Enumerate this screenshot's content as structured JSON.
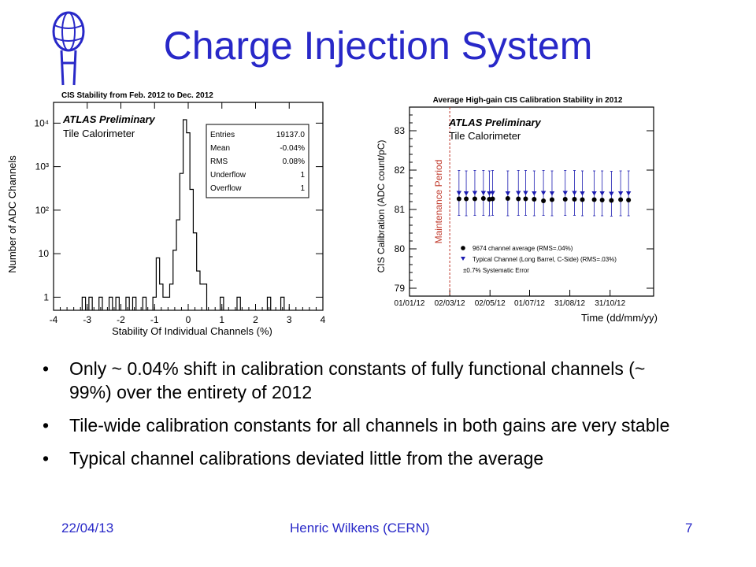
{
  "slide": {
    "title": "Charge Injection System",
    "bullets": [
      "Only ~ 0.04% shift in calibration constants of fully functional channels (~ 99%) over the entirety of 2012",
      "Tile-wide calibration constants for all channels in both gains are very stable",
      "Typical channel calibrations deviated little from the average"
    ],
    "bullet_symbol": "•",
    "footer": {
      "date": "22/04/13",
      "author": "Henric Wilkens (CERN)",
      "page": "7"
    },
    "colors": {
      "title": "#2828c8",
      "footer": "#2828c8",
      "marker_average": "#000000",
      "marker_typical": "#1a1ab0",
      "maintenance_line": "#c0392b"
    }
  },
  "chart_data": [
    {
      "type": "histogram",
      "title": "CIS Stability from Feb. 2012 to Dec. 2012",
      "xlabel": "Stability Of Individual Channels (%)",
      "ylabel": "Number of ADC Channels",
      "xlim": [
        -4,
        4
      ],
      "ylim": [
        0.5,
        30000
      ],
      "yscale": "log",
      "xticks": [
        -4,
        -3,
        -2,
        -1,
        0,
        1,
        2,
        3,
        4
      ],
      "yticks": [
        {
          "value": 1,
          "label": "1"
        },
        {
          "value": 10,
          "label": "10"
        },
        {
          "value": 100,
          "label": "10²"
        },
        {
          "value": 1000,
          "label": "10³"
        },
        {
          "value": 10000,
          "label": "10⁴"
        }
      ],
      "annotation": {
        "line1": "ATLAS Preliminary",
        "line2": "Tile Calorimeter"
      },
      "stats": [
        {
          "label": "Entries",
          "value": "19137.0"
        },
        {
          "label": "Mean",
          "value": "-0.04%"
        },
        {
          "label": "RMS",
          "value": "0.08%"
        },
        {
          "label": "Underflow",
          "value": "1"
        },
        {
          "label": "Overflow",
          "value": "1"
        }
      ],
      "bin_width": 0.1,
      "bins": [
        {
          "x": -3.1,
          "count": 1
        },
        {
          "x": -2.9,
          "count": 1
        },
        {
          "x": -2.6,
          "count": 1
        },
        {
          "x": -2.3,
          "count": 1
        },
        {
          "x": -2.1,
          "count": 1
        },
        {
          "x": -1.8,
          "count": 1
        },
        {
          "x": -1.6,
          "count": 1
        },
        {
          "x": -1.3,
          "count": 1
        },
        {
          "x": -1.0,
          "count": 1
        },
        {
          "x": -0.9,
          "count": 8
        },
        {
          "x": -0.8,
          "count": 2
        },
        {
          "x": -0.7,
          "count": 1
        },
        {
          "x": -0.6,
          "count": 1
        },
        {
          "x": -0.5,
          "count": 2
        },
        {
          "x": -0.4,
          "count": 12
        },
        {
          "x": -0.3,
          "count": 60
        },
        {
          "x": -0.2,
          "count": 700
        },
        {
          "x": -0.1,
          "count": 12000
        },
        {
          "x": 0.0,
          "count": 6000
        },
        {
          "x": 0.1,
          "count": 300
        },
        {
          "x": 0.2,
          "count": 30
        },
        {
          "x": 0.3,
          "count": 4
        },
        {
          "x": 0.4,
          "count": 2
        },
        {
          "x": 0.5,
          "count": 2
        },
        {
          "x": 1.0,
          "count": 1
        },
        {
          "x": 1.5,
          "count": 1
        },
        {
          "x": 2.4,
          "count": 1
        },
        {
          "x": 2.8,
          "count": 1
        }
      ]
    },
    {
      "type": "scatter",
      "title": "Average High-gain CIS Calibration Stability in 2012",
      "xlabel": "Time (dd/mm/yy)",
      "ylabel": "CIS Calibration (ADC count/pC)",
      "ylim": [
        78.8,
        83.6
      ],
      "yticks": [
        79,
        80,
        81,
        82,
        83
      ],
      "xlim": [
        "2012-01-01",
        "2013-01-05"
      ],
      "xticks": [
        {
          "date": "2012-01-01",
          "label": "01/01/12"
        },
        {
          "date": "2012-03-02",
          "label": "02/03/12"
        },
        {
          "date": "2012-05-02",
          "label": "02/05/12"
        },
        {
          "date": "2012-07-01",
          "label": "01/07/12"
        },
        {
          "date": "2012-08-31",
          "label": "31/08/12"
        },
        {
          "date": "2012-10-31",
          "label": "31/10/12"
        }
      ],
      "annotation": {
        "line1": "ATLAS Preliminary",
        "line2": "Tile Calorimeter"
      },
      "maintenance": {
        "date": "2012-03-02",
        "label": "Maintenance Period"
      },
      "legend": [
        {
          "marker": "circle",
          "label": "9674 channel average (RMS=.04%)"
        },
        {
          "marker": "triangle",
          "label": "Typical Channel (Long Barrel, C-Side) (RMS=.03%)"
        },
        {
          "marker": "none",
          "label": "±0.7% Systematic Error"
        }
      ],
      "systematic_error_pct": 0.7,
      "series": [
        {
          "name": "9674 channel average (RMS=.04%)",
          "marker": "circle",
          "points": [
            {
              "x": "2012-03-16",
              "y": 81.27
            },
            {
              "x": "2012-03-27",
              "y": 81.27
            },
            {
              "x": "2012-04-09",
              "y": 81.27
            },
            {
              "x": "2012-04-22",
              "y": 81.28
            },
            {
              "x": "2012-05-01",
              "y": 81.26
            },
            {
              "x": "2012-05-06",
              "y": 81.27
            },
            {
              "x": "2012-05-29",
              "y": 81.28
            },
            {
              "x": "2012-06-14",
              "y": 81.27
            },
            {
              "x": "2012-06-25",
              "y": 81.27
            },
            {
              "x": "2012-07-08",
              "y": 81.26
            },
            {
              "x": "2012-07-22",
              "y": 81.22
            },
            {
              "x": "2012-08-04",
              "y": 81.25
            },
            {
              "x": "2012-08-24",
              "y": 81.26
            },
            {
              "x": "2012-09-07",
              "y": 81.26
            },
            {
              "x": "2012-09-19",
              "y": 81.25
            },
            {
              "x": "2012-10-07",
              "y": 81.25
            },
            {
              "x": "2012-10-19",
              "y": 81.24
            },
            {
              "x": "2012-11-02",
              "y": 81.23
            },
            {
              "x": "2012-11-16",
              "y": 81.25
            },
            {
              "x": "2012-11-28",
              "y": 81.24
            }
          ]
        },
        {
          "name": "Typical Channel (Long Barrel, C-Side) (RMS=.03%)",
          "marker": "triangle",
          "points": [
            {
              "x": "2012-03-16",
              "y": 81.42
            },
            {
              "x": "2012-03-27",
              "y": 81.41
            },
            {
              "x": "2012-04-09",
              "y": 81.42
            },
            {
              "x": "2012-04-22",
              "y": 81.42
            },
            {
              "x": "2012-05-01",
              "y": 81.41
            },
            {
              "x": "2012-05-06",
              "y": 81.42
            },
            {
              "x": "2012-05-29",
              "y": 81.41
            },
            {
              "x": "2012-06-14",
              "y": 81.42
            },
            {
              "x": "2012-06-25",
              "y": 81.42
            },
            {
              "x": "2012-07-08",
              "y": 81.41
            },
            {
              "x": "2012-07-22",
              "y": 81.42
            },
            {
              "x": "2012-08-04",
              "y": 81.41
            },
            {
              "x": "2012-08-24",
              "y": 81.42
            },
            {
              "x": "2012-09-07",
              "y": 81.42
            },
            {
              "x": "2012-09-19",
              "y": 81.41
            },
            {
              "x": "2012-10-07",
              "y": 81.41
            },
            {
              "x": "2012-10-19",
              "y": 81.41
            },
            {
              "x": "2012-11-02",
              "y": 81.4
            },
            {
              "x": "2012-11-16",
              "y": 81.41
            },
            {
              "x": "2012-11-28",
              "y": 81.41
            }
          ]
        }
      ]
    }
  ]
}
